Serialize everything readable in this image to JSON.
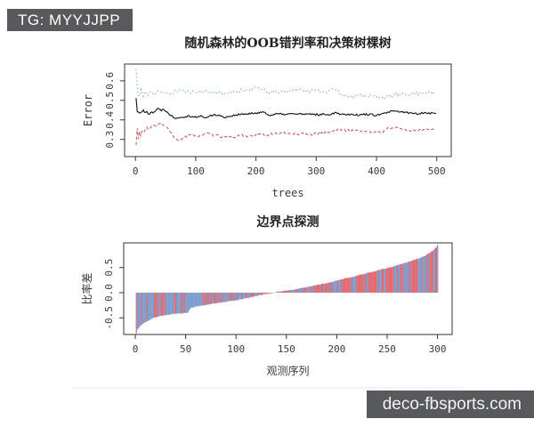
{
  "watermarks": {
    "top": "TG: MYYJJPP",
    "bottom": "deco-fbsports.com",
    "bg_color": "#58595b",
    "text_color": "#ffffff"
  },
  "figure": {
    "bg_color": "#ffffff",
    "axis_color": "#333333",
    "text_color": "#262626",
    "photo_edge_color": "#ebebeb"
  },
  "chart_data": [
    {
      "type": "line",
      "title": "随机森林的OOB错判率和决策树棵树",
      "xlabel": "trees",
      "ylabel": "Error",
      "xlim": [
        -18,
        524
      ],
      "ylim": [
        0.212,
        0.686
      ],
      "xticks": {
        "values": [
          0,
          100,
          200,
          300,
          400,
          500
        ],
        "labels": [
          "0",
          "100",
          "200",
          "300",
          "400",
          "500"
        ]
      },
      "yticks": {
        "values": [
          0.3,
          0.4,
          0.5,
          0.6
        ],
        "labels": [
          "0.3",
          "0.4",
          "0.5",
          "0.6"
        ]
      },
      "grid": false,
      "legend": null,
      "series": [
        {
          "name": "green-dotted",
          "color": "#7ab87a",
          "dash": "dotted",
          "jitter": 0.008,
          "seed": 11,
          "keypoints": [
            [
              1,
              0.66
            ],
            [
              3,
              0.57
            ],
            [
              6,
              0.5
            ],
            [
              9,
              0.56
            ],
            [
              12,
              0.52
            ],
            [
              16,
              0.55
            ],
            [
              20,
              0.52
            ],
            [
              25,
              0.545
            ],
            [
              30,
              0.53
            ],
            [
              38,
              0.552
            ],
            [
              45,
              0.54
            ],
            [
              55,
              0.532
            ],
            [
              65,
              0.545
            ],
            [
              75,
              0.553
            ],
            [
              85,
              0.545
            ],
            [
              100,
              0.542
            ],
            [
              115,
              0.545
            ],
            [
              130,
              0.538
            ],
            [
              145,
              0.537
            ],
            [
              160,
              0.537
            ],
            [
              175,
              0.552
            ],
            [
              190,
              0.553
            ],
            [
              200,
              0.563
            ],
            [
              210,
              0.562
            ],
            [
              218,
              0.54
            ],
            [
              230,
              0.54
            ],
            [
              245,
              0.548
            ],
            [
              260,
              0.55
            ],
            [
              272,
              0.557
            ],
            [
              285,
              0.546
            ],
            [
              300,
              0.548
            ],
            [
              315,
              0.544
            ],
            [
              330,
              0.56
            ],
            [
              342,
              0.528
            ],
            [
              360,
              0.52
            ],
            [
              375,
              0.527
            ],
            [
              390,
              0.524
            ],
            [
              405,
              0.517
            ],
            [
              420,
              0.516
            ],
            [
              432,
              0.53
            ],
            [
              445,
              0.53
            ],
            [
              458,
              0.532
            ],
            [
              470,
              0.536
            ],
            [
              480,
              0.54
            ],
            [
              490,
              0.539
            ],
            [
              500,
              0.536
            ]
          ]
        },
        {
          "name": "black-solid",
          "color": "#111111",
          "dash": "solid",
          "jitter": 0.005,
          "seed": 22,
          "keypoints": [
            [
              1,
              0.51
            ],
            [
              2,
              0.43
            ],
            [
              4,
              0.46
            ],
            [
              6,
              0.425
            ],
            [
              8,
              0.45
            ],
            [
              10,
              0.43
            ],
            [
              13,
              0.452
            ],
            [
              16,
              0.43
            ],
            [
              19,
              0.448
            ],
            [
              22,
              0.428
            ],
            [
              26,
              0.443
            ],
            [
              30,
              0.437
            ],
            [
              34,
              0.45
            ],
            [
              38,
              0.458
            ],
            [
              42,
              0.448
            ],
            [
              46,
              0.455
            ],
            [
              50,
              0.45
            ],
            [
              54,
              0.435
            ],
            [
              58,
              0.425
            ],
            [
              62,
              0.417
            ],
            [
              66,
              0.41
            ],
            [
              72,
              0.413
            ],
            [
              80,
              0.416
            ],
            [
              90,
              0.42
            ],
            [
              100,
              0.414
            ],
            [
              110,
              0.419
            ],
            [
              118,
              0.41
            ],
            [
              126,
              0.423
            ],
            [
              134,
              0.428
            ],
            [
              142,
              0.418
            ],
            [
              150,
              0.414
            ],
            [
              158,
              0.42
            ],
            [
              166,
              0.425
            ],
            [
              175,
              0.428
            ],
            [
              185,
              0.43
            ],
            [
              195,
              0.432
            ],
            [
              205,
              0.438
            ],
            [
              212,
              0.442
            ],
            [
              218,
              0.428
            ],
            [
              226,
              0.425
            ],
            [
              235,
              0.43
            ],
            [
              245,
              0.428
            ],
            [
              255,
              0.43
            ],
            [
              265,
              0.431
            ],
            [
              275,
              0.43
            ],
            [
              285,
              0.427
            ],
            [
              295,
              0.43
            ],
            [
              305,
              0.426
            ],
            [
              315,
              0.43
            ],
            [
              325,
              0.428
            ],
            [
              332,
              0.44
            ],
            [
              340,
              0.43
            ],
            [
              350,
              0.428
            ],
            [
              360,
              0.43
            ],
            [
              370,
              0.424
            ],
            [
              380,
              0.429
            ],
            [
              390,
              0.427
            ],
            [
              400,
              0.424
            ],
            [
              410,
              0.429
            ],
            [
              418,
              0.438
            ],
            [
              428,
              0.444
            ],
            [
              438,
              0.442
            ],
            [
              448,
              0.438
            ],
            [
              458,
              0.434
            ],
            [
              468,
              0.432
            ],
            [
              478,
              0.437
            ],
            [
              488,
              0.435
            ],
            [
              500,
              0.432
            ]
          ]
        },
        {
          "name": "red-dashed",
          "color": "#c86060",
          "dash": "dashed",
          "jitter": 0.006,
          "seed": 33,
          "keypoints": [
            [
              1,
              0.27
            ],
            [
              3,
              0.355
            ],
            [
              5,
              0.3
            ],
            [
              7,
              0.345
            ],
            [
              9,
              0.315
            ],
            [
              12,
              0.355
            ],
            [
              15,
              0.34
            ],
            [
              18,
              0.36
            ],
            [
              22,
              0.35
            ],
            [
              26,
              0.365
            ],
            [
              30,
              0.372
            ],
            [
              34,
              0.368
            ],
            [
              38,
              0.383
            ],
            [
              42,
              0.378
            ],
            [
              46,
              0.372
            ],
            [
              50,
              0.368
            ],
            [
              54,
              0.352
            ],
            [
              58,
              0.338
            ],
            [
              62,
              0.318
            ],
            [
              66,
              0.3
            ],
            [
              70,
              0.293
            ],
            [
              75,
              0.3
            ],
            [
              80,
              0.31
            ],
            [
              88,
              0.318
            ],
            [
              96,
              0.322
            ],
            [
              104,
              0.318
            ],
            [
              112,
              0.325
            ],
            [
              120,
              0.33
            ],
            [
              128,
              0.322
            ],
            [
              136,
              0.318
            ],
            [
              144,
              0.315
            ],
            [
              152,
              0.31
            ],
            [
              160,
              0.308
            ],
            [
              168,
              0.315
            ],
            [
              176,
              0.323
            ],
            [
              184,
              0.318
            ],
            [
              192,
              0.314
            ],
            [
              200,
              0.32
            ],
            [
              210,
              0.328
            ],
            [
              220,
              0.324
            ],
            [
              230,
              0.33
            ],
            [
              240,
              0.329
            ],
            [
              250,
              0.332
            ],
            [
              260,
              0.33
            ],
            [
              270,
              0.328
            ],
            [
              280,
              0.33
            ],
            [
              290,
              0.325
            ],
            [
              300,
              0.33
            ],
            [
              310,
              0.331
            ],
            [
              320,
              0.336
            ],
            [
              330,
              0.344
            ],
            [
              340,
              0.35
            ],
            [
              350,
              0.345
            ],
            [
              360,
              0.35
            ],
            [
              370,
              0.344
            ],
            [
              380,
              0.34
            ],
            [
              390,
              0.337
            ],
            [
              400,
              0.335
            ],
            [
              410,
              0.34
            ],
            [
              418,
              0.355
            ],
            [
              428,
              0.36
            ],
            [
              438,
              0.357
            ],
            [
              448,
              0.35
            ],
            [
              458,
              0.345
            ],
            [
              468,
              0.35
            ],
            [
              478,
              0.347
            ],
            [
              488,
              0.35
            ],
            [
              500,
              0.352
            ]
          ]
        }
      ]
    },
    {
      "type": "bar",
      "title": "边界点探测",
      "xlabel": "观测序列",
      "ylabel": "比率差",
      "n_bars": 300,
      "xlim": [
        -11.5,
        314.5
      ],
      "ylim": [
        -0.83,
        0.99
      ],
      "xticks": {
        "values": [
          0,
          50,
          100,
          150,
          200,
          250,
          300
        ],
        "labels": [
          "0",
          "50",
          "100",
          "150",
          "200",
          "250",
          "300"
        ]
      },
      "yticks": {
        "values": [
          -0.5,
          0,
          0.5
        ],
        "labels": [
          "-0.5",
          "0.0",
          "0.5"
        ]
      },
      "grid": false,
      "legend": null,
      "bar_colors": {
        "red": "#e56a6f",
        "blue": "#7f9ecf"
      },
      "jitter": 0.008,
      "seed": 7,
      "value_envelope": [
        [
          1,
          -0.8
        ],
        [
          2,
          -0.74
        ],
        [
          4,
          -0.68
        ],
        [
          7,
          -0.62
        ],
        [
          10,
          -0.58
        ],
        [
          14,
          -0.54
        ],
        [
          18,
          -0.5
        ],
        [
          25,
          -0.46
        ],
        [
          32,
          -0.44
        ],
        [
          40,
          -0.42
        ],
        [
          46,
          -0.41
        ],
        [
          52,
          -0.4
        ],
        [
          55,
          -0.3
        ],
        [
          62,
          -0.27
        ],
        [
          70,
          -0.24
        ],
        [
          80,
          -0.21
        ],
        [
          90,
          -0.18
        ],
        [
          100,
          -0.15
        ],
        [
          110,
          -0.11
        ],
        [
          120,
          -0.07
        ],
        [
          128,
          -0.03
        ],
        [
          135,
          -0.01
        ],
        [
          142,
          0.02
        ],
        [
          150,
          0.04
        ],
        [
          160,
          0.07
        ],
        [
          170,
          0.11
        ],
        [
          180,
          0.15
        ],
        [
          190,
          0.19
        ],
        [
          200,
          0.24
        ],
        [
          210,
          0.29
        ],
        [
          220,
          0.34
        ],
        [
          230,
          0.39
        ],
        [
          240,
          0.44
        ],
        [
          250,
          0.49
        ],
        [
          258,
          0.53
        ],
        [
          266,
          0.58
        ],
        [
          274,
          0.63
        ],
        [
          281,
          0.68
        ],
        [
          287,
          0.73
        ],
        [
          292,
          0.79
        ],
        [
          296,
          0.85
        ],
        [
          299,
          0.91
        ],
        [
          300,
          0.95
        ]
      ],
      "red_probability": [
        [
          1,
          0.12
        ],
        [
          12,
          0.2
        ],
        [
          18,
          0.45
        ],
        [
          28,
          0.6
        ],
        [
          36,
          0.45
        ],
        [
          45,
          0.4
        ],
        [
          52,
          0.3
        ],
        [
          58,
          0.2
        ],
        [
          66,
          0.3
        ],
        [
          75,
          0.45
        ],
        [
          85,
          0.55
        ],
        [
          95,
          0.5
        ],
        [
          105,
          0.55
        ],
        [
          115,
          0.5
        ],
        [
          125,
          0.48
        ],
        [
          135,
          0.5
        ],
        [
          145,
          0.52
        ],
        [
          155,
          0.55
        ],
        [
          165,
          0.55
        ],
        [
          175,
          0.58
        ],
        [
          185,
          0.6
        ],
        [
          195,
          0.62
        ],
        [
          205,
          0.65
        ],
        [
          215,
          0.68
        ],
        [
          225,
          0.7
        ],
        [
          235,
          0.72
        ],
        [
          245,
          0.73
        ],
        [
          255,
          0.74
        ],
        [
          265,
          0.7
        ],
        [
          275,
          0.66
        ],
        [
          285,
          0.6
        ],
        [
          292,
          0.55
        ],
        [
          300,
          0.5
        ]
      ]
    }
  ]
}
